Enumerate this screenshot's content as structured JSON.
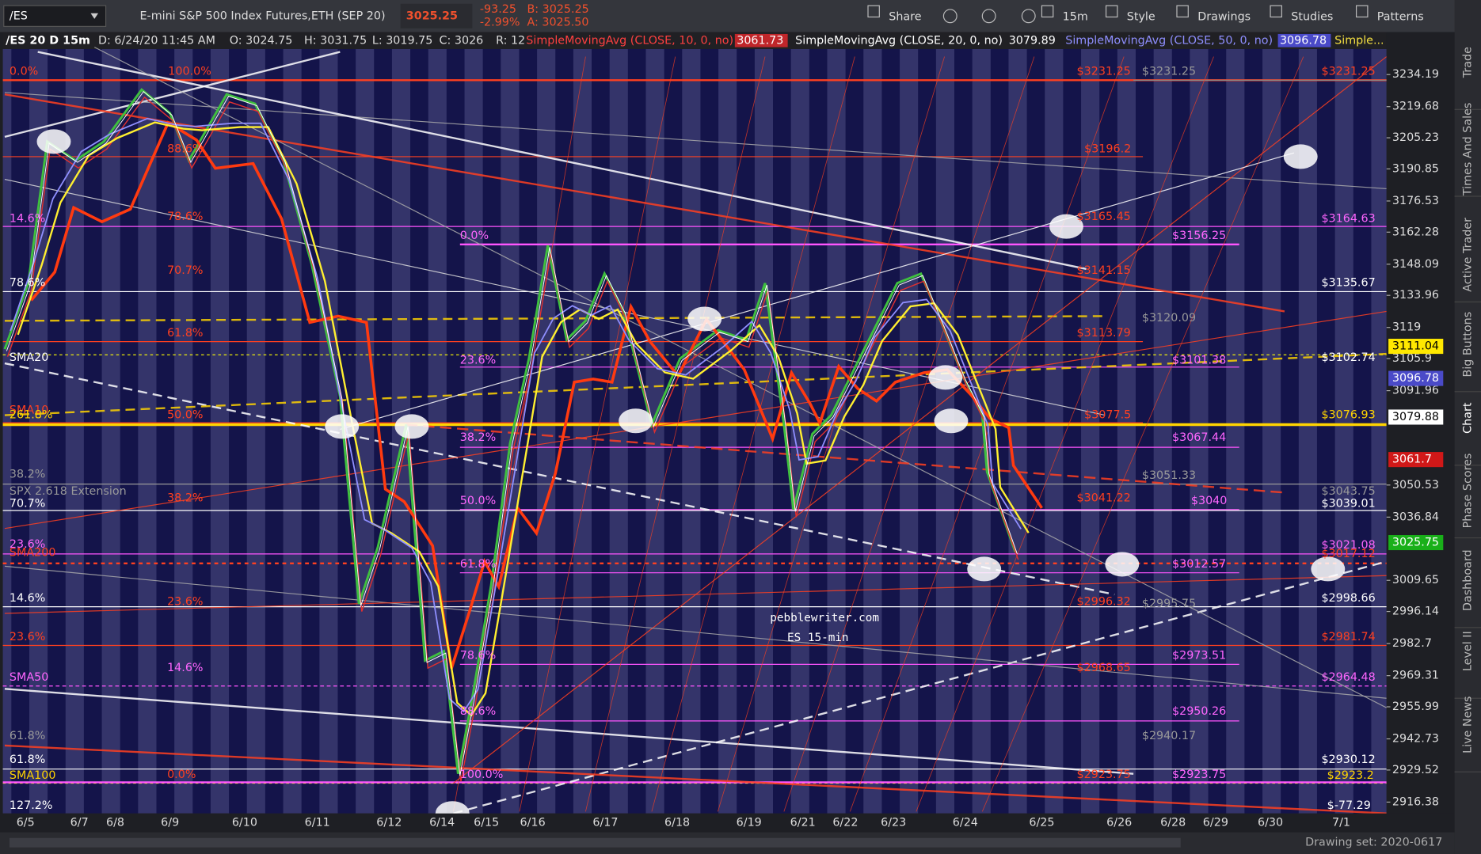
{
  "toolbar": {
    "symbol": "/ES",
    "description": "E-mini S&P 500 Index Futures,ETH (SEP 20)",
    "last": "3025.25",
    "change": "-93.25",
    "change_pct": "-2.99%",
    "bid": "B: 3025.25",
    "ask": "A: 3025.50",
    "buttons": [
      "Share",
      "15m",
      "Style",
      "Drawings",
      "Studies",
      "Patterns"
    ]
  },
  "info_bar": [
    "/ES 20 D 15m",
    "D: 6/24/20 11:45 AM",
    "O: 3024.75",
    "H: 3031.75",
    "L: 3019.75",
    "C: 3026",
    "R: 12",
    "SimpleMovingAvg (CLOSE, 10, 0, no)",
    "3061.73",
    "SimpleMovingAvg (CLOSE, 20, 0, no)",
    "3079.89",
    "SimpleMovingAvg (CLOSE, 50, 0, no)",
    "3096.78",
    "Simple..."
  ],
  "price_axis": {
    "ticks": [
      "3234.19",
      "3219.68",
      "3205.23",
      "3190.85",
      "3176.53",
      "3162.28",
      "3148.09",
      "3133.96",
      "3119",
      "3105.9",
      "3091.96",
      "3050.53",
      "3036.84",
      "3009.65",
      "2996.14",
      "2982.7",
      "2969.31",
      "2955.99",
      "2942.73",
      "2929.52",
      "2916.38"
    ],
    "badges": [
      "3111.04",
      "3096.78",
      "3079.88",
      "3061.7",
      "3025.75"
    ]
  },
  "date_axis": [
    "6/5",
    "6/7",
    "6/8",
    "6/9",
    "6/10",
    "6/11",
    "6/12",
    "6/14",
    "6/15",
    "6/16",
    "6/17",
    "6/18",
    "6/19",
    "6/21",
    "6/22",
    "6/23",
    "6/24",
    "6/25",
    "6/26",
    "6/28",
    "6/29",
    "6/30",
    "7/1"
  ],
  "chart_labels": [
    "0.0%",
    "100.0%",
    "88.6%",
    "14.6%",
    "78.6%",
    "70.7%",
    "78.6%",
    "61.8%",
    "SMA20",
    "23.6%",
    "SMA10",
    "261.8%",
    "50.0%",
    "38.2%",
    "38.2%",
    "SPX 2.618 Extension",
    "70.7%",
    "38.2%",
    "50.0%",
    "23.6%",
    "SMA200",
    "61.8%",
    "14.6%",
    "23.6%",
    "23.6%",
    "78.6%",
    "14.6%",
    "SMA50",
    "88.6%",
    "61.8%",
    "61.8%",
    "SMA100",
    "0.0%",
    "100.0%",
    "127.2%",
    "0.0%",
    "$3231.25",
    "$3231.25",
    "$3231.25",
    "$3196.2",
    "$3165.45",
    "$3164.63",
    "$3156.25",
    "$3141.15",
    "$3135.67",
    "$3120.09",
    "$3113.79",
    "$3101.38",
    "$3102.74",
    "$3077.5",
    "$3076.93",
    "$3067.44",
    "$3051.33",
    "$3043.75",
    "$3041.22",
    "$3040",
    "$3039.01",
    "$3021.08",
    "$3017.12",
    "$3012.57",
    "$2998.66",
    "$2996.32",
    "$2995.75",
    "$2981.74",
    "$2973.51",
    "$2968.65",
    "$2964.48",
    "$2950.26",
    "$2940.17",
    "$2930.12",
    "$2923.75",
    "$2923.75",
    "$2923.2",
    "$-77.29"
  ],
  "watermark": [
    "pebblewriter.com",
    "ES 15-min"
  ],
  "bottom_bar": {
    "drawing_set": "Drawing set: 2020-0617"
  },
  "side_tabs": [
    "Trade",
    "Times And Sales",
    "Active Trader",
    "Big Buttons",
    "Chart",
    "Phase Scores",
    "Dashboard",
    "Level II",
    "Live News"
  ]
}
